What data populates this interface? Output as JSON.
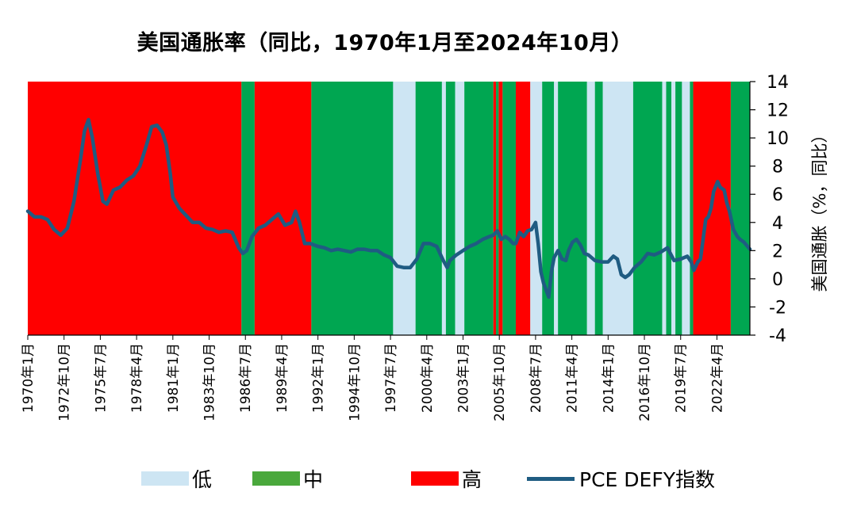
{
  "chart_data": {
    "type": "line",
    "title": "美国通胀率（同比，1970年1月至2024年10月）",
    "ylabel": "美国通胀（%，同比）",
    "ylim": [
      -4,
      14
    ],
    "y_ticks": [
      14,
      12,
      10,
      8,
      6,
      4,
      2,
      0,
      -2,
      -4
    ],
    "x_range": [
      1970.0,
      2024.75
    ],
    "x_tick_labels": [
      "1970年1月",
      "1972年10月",
      "1975年7月",
      "1978年4月",
      "1981年1月",
      "1983年10月",
      "1986年7月",
      "1989年4月",
      "1992年1月",
      "1994年10月",
      "1997年7月",
      "2000年4月",
      "2003年1月",
      "2005年10月",
      "2008年7月",
      "2011年4月",
      "2014年1月",
      "2016年10月",
      "2019年7月",
      "2022年4月"
    ],
    "regimes": [
      {
        "start": 1970.0,
        "end": 1986.2,
        "level": "高"
      },
      {
        "start": 1986.2,
        "end": 1987.2,
        "level": "中"
      },
      {
        "start": 1987.2,
        "end": 1991.5,
        "level": "高"
      },
      {
        "start": 1991.5,
        "end": 1997.7,
        "level": "中"
      },
      {
        "start": 1997.7,
        "end": 1999.4,
        "level": "低"
      },
      {
        "start": 1999.4,
        "end": 2001.4,
        "level": "中"
      },
      {
        "start": 2001.4,
        "end": 2001.7,
        "level": "低"
      },
      {
        "start": 2001.7,
        "end": 2002.4,
        "level": "中"
      },
      {
        "start": 2002.4,
        "end": 2003.1,
        "level": "低"
      },
      {
        "start": 2003.1,
        "end": 2005.3,
        "level": "中"
      },
      {
        "start": 2005.3,
        "end": 2005.5,
        "level": "高"
      },
      {
        "start": 2005.5,
        "end": 2005.7,
        "level": "中"
      },
      {
        "start": 2005.7,
        "end": 2006.0,
        "level": "高"
      },
      {
        "start": 2006.0,
        "end": 2007.0,
        "level": "中"
      },
      {
        "start": 2007.0,
        "end": 2008.1,
        "level": "高"
      },
      {
        "start": 2008.1,
        "end": 2009.0,
        "level": "低"
      },
      {
        "start": 2009.0,
        "end": 2009.9,
        "level": "中"
      },
      {
        "start": 2009.9,
        "end": 2010.2,
        "level": "低"
      },
      {
        "start": 2010.2,
        "end": 2012.4,
        "level": "中"
      },
      {
        "start": 2012.4,
        "end": 2013.0,
        "level": "低"
      },
      {
        "start": 2013.0,
        "end": 2013.6,
        "level": "中"
      },
      {
        "start": 2013.6,
        "end": 2015.9,
        "level": "低"
      },
      {
        "start": 2015.9,
        "end": 2018.1,
        "level": "中"
      },
      {
        "start": 2018.1,
        "end": 2018.4,
        "level": "低"
      },
      {
        "start": 2018.4,
        "end": 2018.8,
        "level": "中"
      },
      {
        "start": 2018.8,
        "end": 2019.1,
        "level": "低"
      },
      {
        "start": 2019.1,
        "end": 2019.6,
        "level": "中"
      },
      {
        "start": 2019.6,
        "end": 2020.2,
        "level": "低"
      },
      {
        "start": 2020.2,
        "end": 2020.45,
        "level": "中"
      },
      {
        "start": 2020.45,
        "end": 2023.3,
        "level": "高"
      },
      {
        "start": 2023.3,
        "end": 2024.75,
        "level": "中"
      }
    ],
    "series": [
      {
        "name": "PCE DEFY指数",
        "color": "#1f5c82",
        "x": [
          1970.0,
          1970.5,
          1971.0,
          1971.5,
          1972.0,
          1972.5,
          1973.0,
          1973.5,
          1974.0,
          1974.3,
          1974.6,
          1974.9,
          1975.3,
          1975.7,
          1976.0,
          1976.5,
          1977.0,
          1977.5,
          1978.0,
          1978.5,
          1979.0,
          1979.4,
          1979.8,
          1980.2,
          1980.5,
          1980.8,
          1981.0,
          1981.5,
          1982.0,
          1982.5,
          1983.0,
          1983.5,
          1984.0,
          1984.5,
          1985.0,
          1985.5,
          1986.0,
          1986.3,
          1986.6,
          1987.0,
          1987.5,
          1988.0,
          1988.5,
          1989.0,
          1989.5,
          1990.0,
          1990.3,
          1990.6,
          1991.0,
          1991.4,
          1991.7,
          1992.0,
          1992.5,
          1993.0,
          1993.5,
          1994.0,
          1994.5,
          1995.0,
          1995.5,
          1996.0,
          1996.5,
          1997.0,
          1997.5,
          1998.0,
          1998.5,
          1999.0,
          1999.5,
          2000.0,
          2000.5,
          2001.0,
          2001.5,
          2001.8,
          2002.0,
          2002.5,
          2003.0,
          2003.5,
          2004.0,
          2004.5,
          2005.0,
          2005.3,
          2005.6,
          2005.9,
          2006.2,
          2006.5,
          2006.8,
          2007.0,
          2007.3,
          2007.6,
          2007.9,
          2008.2,
          2008.5,
          2008.7,
          2008.9,
          2009.1,
          2009.3,
          2009.5,
          2009.7,
          2009.9,
          2010.2,
          2010.5,
          2010.8,
          2011.0,
          2011.3,
          2011.6,
          2011.9,
          2012.2,
          2012.5,
          2013.0,
          2013.5,
          2014.0,
          2014.4,
          2014.7,
          2015.0,
          2015.3,
          2015.6,
          2016.0,
          2016.5,
          2017.0,
          2017.5,
          2018.0,
          2018.5,
          2019.0,
          2019.5,
          2020.0,
          2020.3,
          2020.5,
          2020.8,
          2021.0,
          2021.2,
          2021.4,
          2021.6,
          2021.8,
          2022.0,
          2022.3,
          2022.5,
          2022.8,
          2023.0,
          2023.2,
          2023.5,
          2023.8,
          2024.0,
          2024.3,
          2024.75
        ],
        "y": [
          4.8,
          4.4,
          4.4,
          4.2,
          3.5,
          3.1,
          3.6,
          5.5,
          8.5,
          10.5,
          11.3,
          10.0,
          7.5,
          5.5,
          5.3,
          6.3,
          6.5,
          7.0,
          7.3,
          8.0,
          9.5,
          10.8,
          10.9,
          10.4,
          9.5,
          7.5,
          5.8,
          5.0,
          4.5,
          4.0,
          4.0,
          3.6,
          3.5,
          3.3,
          3.4,
          3.3,
          2.2,
          1.8,
          2.0,
          3.0,
          3.6,
          3.8,
          4.2,
          4.6,
          3.8,
          4.0,
          4.8,
          4.0,
          2.5,
          2.5,
          2.4,
          2.3,
          2.2,
          2.0,
          2.1,
          2.0,
          1.9,
          2.1,
          2.1,
          2.0,
          2.0,
          1.7,
          1.5,
          0.9,
          0.8,
          0.8,
          1.4,
          2.5,
          2.5,
          2.3,
          1.3,
          0.8,
          1.3,
          1.7,
          2.0,
          2.3,
          2.5,
          2.8,
          3.0,
          3.1,
          3.4,
          2.8,
          3.0,
          2.8,
          2.5,
          2.5,
          3.3,
          3.0,
          3.4,
          3.5,
          4.0,
          2.5,
          0.5,
          -0.3,
          -0.8,
          -1.3,
          0.5,
          1.5,
          2.0,
          1.4,
          1.3,
          2.0,
          2.6,
          2.8,
          2.4,
          1.8,
          1.7,
          1.3,
          1.2,
          1.2,
          1.6,
          1.4,
          0.3,
          0.1,
          0.3,
          0.8,
          1.2,
          1.8,
          1.7,
          1.9,
          2.2,
          1.3,
          1.4,
          1.6,
          1.2,
          0.6,
          1.2,
          1.4,
          2.8,
          4.2,
          4.4,
          5.0,
          6.2,
          6.9,
          6.5,
          6.3,
          5.4,
          4.8,
          3.5,
          3.0,
          2.8,
          2.6,
          2.1
        ]
      }
    ],
    "legend": [
      {
        "label": "低",
        "color": "#cde5f3"
      },
      {
        "label": "中",
        "color": "#4aa83c"
      },
      {
        "label": "高",
        "color": "#ff0000"
      },
      {
        "label": "PCE DEFY指数",
        "color": "#1f5c82"
      }
    ],
    "regime_colors": {
      "低": "#cde5f3",
      "中": "#00a651",
      "高": "#ff0000"
    },
    "legend_position": "bottom",
    "grid": false
  }
}
